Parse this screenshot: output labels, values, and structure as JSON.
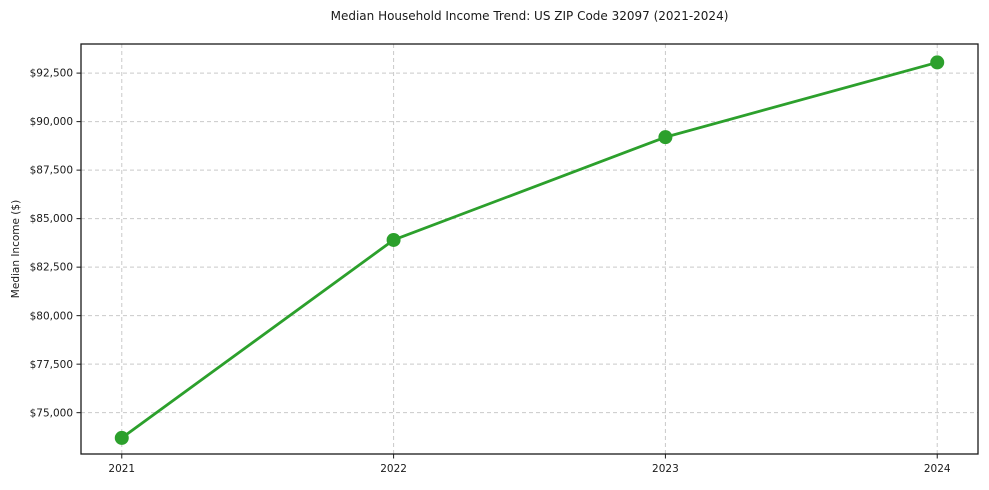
{
  "chart_data": {
    "type": "line",
    "title": "Median Household Income Trend: US ZIP Code 32097 (2021-2024)",
    "xlabel": "",
    "ylabel": "Median Income ($)",
    "x": [
      2021,
      2022,
      2023,
      2024
    ],
    "xtick_labels": [
      "2021",
      "2022",
      "2023",
      "2024"
    ],
    "series": [
      {
        "name": "Median household income",
        "values": [
          73700,
          83900,
          89200,
          93050
        ]
      }
    ],
    "ytick_values": [
      75000,
      77500,
      80000,
      82500,
      85000,
      87500,
      90000,
      92500
    ],
    "ytick_labels": [
      "$75,000",
      "$77,500",
      "$80,000",
      "$82,500",
      "$85,000",
      "$87,500",
      "$90,000",
      "$92,500"
    ],
    "xlim": [
      2020.85,
      2024.15
    ],
    "ylim": [
      72870,
      94000
    ],
    "grid": true,
    "legend": "none",
    "line_color": "#2ca02c",
    "marker_color": "#2ca02c",
    "grid_color": "#c9c9c9",
    "axis_color": "#1a1a1a",
    "text_color": "#1a1a1a",
    "background_color": "#ffffff"
  }
}
